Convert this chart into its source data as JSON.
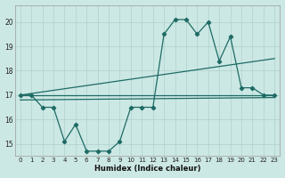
{
  "xlabel": "Humidex (Indice chaleur)",
  "bg_color": "#cce8e4",
  "grid_color": "#aed0cc",
  "line_color": "#1e6b65",
  "xlim": [
    -0.5,
    23.5
  ],
  "ylim": [
    14.5,
    20.7
  ],
  "yticks": [
    15,
    16,
    17,
    18,
    19,
    20
  ],
  "xticks": [
    0,
    1,
    2,
    3,
    4,
    5,
    6,
    7,
    8,
    9,
    10,
    11,
    12,
    13,
    14,
    15,
    16,
    17,
    18,
    19,
    20,
    21,
    22,
    23
  ],
  "series_x": [
    0,
    1,
    2,
    3,
    4,
    5,
    6,
    7,
    8,
    9,
    10,
    11,
    12,
    13,
    14,
    15,
    16,
    17,
    18,
    19,
    20,
    21,
    22,
    23
  ],
  "series_y": [
    17.0,
    17.0,
    16.5,
    16.5,
    15.1,
    15.8,
    14.7,
    14.7,
    14.7,
    15.1,
    16.5,
    16.5,
    16.5,
    19.5,
    20.1,
    20.1,
    19.5,
    20.0,
    18.4,
    19.4,
    17.3,
    17.3,
    17.0,
    17.0
  ],
  "trend1_x": [
    0,
    23
  ],
  "trend1_y": [
    17.0,
    18.5
  ],
  "trend2_x": [
    0,
    23
  ],
  "trend2_y": [
    17.0,
    17.0
  ],
  "trend3_x": [
    0,
    23
  ],
  "trend3_y": [
    16.8,
    16.9
  ]
}
